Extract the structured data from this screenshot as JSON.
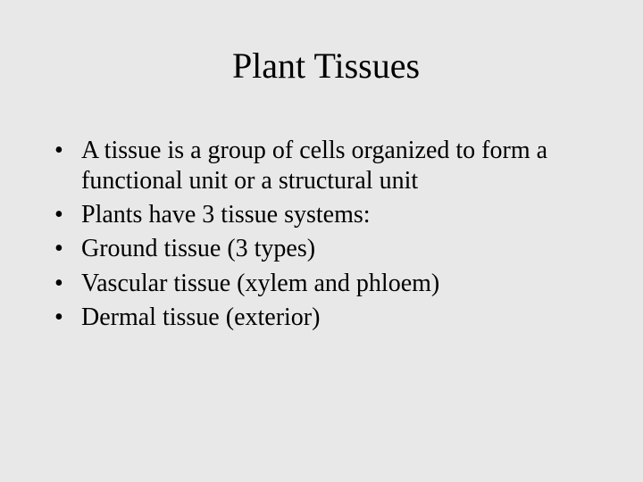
{
  "background_color": "#e8e8e8",
  "text_color": "#000000",
  "font_family": "Times New Roman",
  "title": {
    "text": "Plant Tissues",
    "fontsize": 40,
    "align": "center"
  },
  "bullets": {
    "fontsize": 28,
    "items": [
      "A tissue is a group of cells organized to form a functional unit or a structural unit",
      "Plants have 3 tissue systems:",
      "Ground tissue (3 types)",
      "Vascular tissue (xylem and phloem)",
      "Dermal tissue (exterior)"
    ]
  }
}
